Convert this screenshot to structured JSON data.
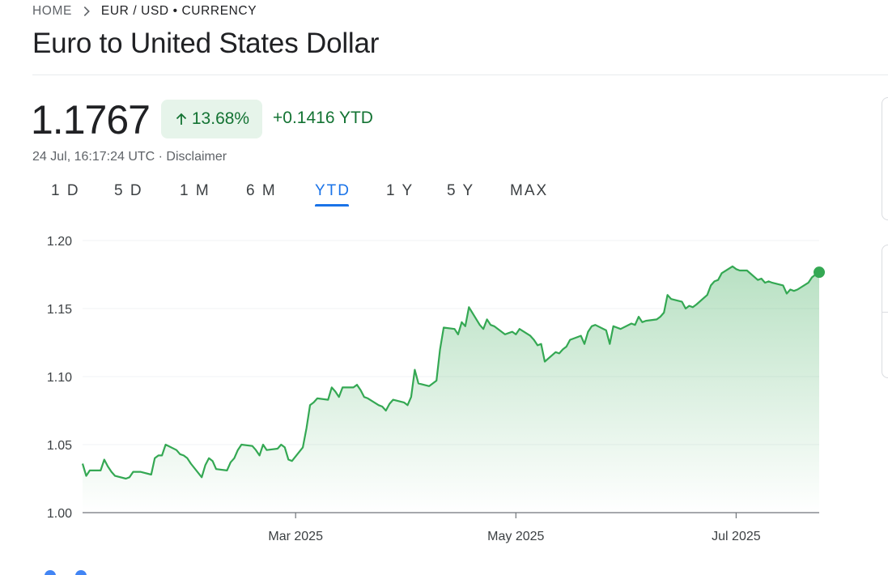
{
  "breadcrumb": {
    "home": "HOME",
    "current": "EUR / USD • CURRENCY"
  },
  "title": "Euro to United States Dollar",
  "quote": {
    "price": "1.1767",
    "change_percent": "13.68%",
    "change_abs": "+0.1416 YTD",
    "timestamp": "24 Jul, 16:17:24 UTC",
    "separator": " · ",
    "disclaimer": "Disclaimer"
  },
  "range_tabs": [
    {
      "label": "1 D",
      "active": false
    },
    {
      "label": "5 D",
      "active": false
    },
    {
      "label": "1 M",
      "active": false
    },
    {
      "label": "6 M",
      "active": false
    },
    {
      "label": "YTD",
      "active": true
    },
    {
      "label": "1 Y",
      "active": false
    },
    {
      "label": "5 Y",
      "active": false
    },
    {
      "label": "MAX",
      "active": false
    }
  ],
  "colors": {
    "line": "#34a853",
    "positive": "#137333",
    "positive_bg": "#e6f4ea",
    "active_tab": "#1a73e8",
    "grid": "#f1f3f4"
  },
  "icons": {
    "breadcrumb_separator": "chevron-right-icon",
    "change_direction": "arrow-up-icon"
  },
  "chart_data": {
    "type": "area",
    "title": "",
    "xlabel": "",
    "ylabel": "",
    "ylim": [
      1.0,
      1.2
    ],
    "yticks": [
      "1.20",
      "1.15",
      "1.10",
      "1.05",
      "1.00"
    ],
    "xticks": [
      {
        "label": "Mar 2025",
        "date": "2025-03-01"
      },
      {
        "label": "May 2025",
        "date": "2025-05-01"
      },
      {
        "label": "Jul 2025",
        "date": "2025-07-01"
      }
    ],
    "xlim": [
      "2025-01-01",
      "2025-07-24"
    ],
    "grid": true,
    "series": [
      {
        "points": [
          [
            "2025-01-01",
            1.036
          ],
          [
            "2025-01-02",
            1.027
          ],
          [
            "2025-01-03",
            1.031
          ],
          [
            "2025-01-06",
            1.031
          ],
          [
            "2025-01-07",
            1.039
          ],
          [
            "2025-01-08",
            1.034
          ],
          [
            "2025-01-09",
            1.03
          ],
          [
            "2025-01-10",
            1.027
          ],
          [
            "2025-01-13",
            1.025
          ],
          [
            "2025-01-14",
            1.026
          ],
          [
            "2025-01-15",
            1.03
          ],
          [
            "2025-01-16",
            1.03
          ],
          [
            "2025-01-17",
            1.03
          ],
          [
            "2025-01-20",
            1.028
          ],
          [
            "2025-01-21",
            1.04
          ],
          [
            "2025-01-22",
            1.042
          ],
          [
            "2025-01-23",
            1.042
          ],
          [
            "2025-01-24",
            1.05
          ],
          [
            "2025-01-27",
            1.046
          ],
          [
            "2025-01-28",
            1.043
          ],
          [
            "2025-01-29",
            1.042
          ],
          [
            "2025-01-30",
            1.04
          ],
          [
            "2025-01-31",
            1.036
          ],
          [
            "2025-02-03",
            1.026
          ],
          [
            "2025-02-04",
            1.035
          ],
          [
            "2025-02-05",
            1.04
          ],
          [
            "2025-02-06",
            1.038
          ],
          [
            "2025-02-07",
            1.032
          ],
          [
            "2025-02-10",
            1.031
          ],
          [
            "2025-02-11",
            1.037
          ],
          [
            "2025-02-12",
            1.04
          ],
          [
            "2025-02-13",
            1.046
          ],
          [
            "2025-02-14",
            1.05
          ],
          [
            "2025-02-17",
            1.049
          ],
          [
            "2025-02-18",
            1.046
          ],
          [
            "2025-02-19",
            1.042
          ],
          [
            "2025-02-20",
            1.05
          ],
          [
            "2025-02-21",
            1.046
          ],
          [
            "2025-02-24",
            1.047
          ],
          [
            "2025-02-25",
            1.05
          ],
          [
            "2025-02-26",
            1.048
          ],
          [
            "2025-02-27",
            1.039
          ],
          [
            "2025-02-28",
            1.038
          ],
          [
            "2025-03-03",
            1.048
          ],
          [
            "2025-03-04",
            1.062
          ],
          [
            "2025-03-05",
            1.079
          ],
          [
            "2025-03-06",
            1.081
          ],
          [
            "2025-03-07",
            1.084
          ],
          [
            "2025-03-10",
            1.083
          ],
          [
            "2025-03-11",
            1.092
          ],
          [
            "2025-03-12",
            1.089
          ],
          [
            "2025-03-13",
            1.085
          ],
          [
            "2025-03-14",
            1.092
          ],
          [
            "2025-03-17",
            1.092
          ],
          [
            "2025-03-18",
            1.094
          ],
          [
            "2025-03-19",
            1.09
          ],
          [
            "2025-03-20",
            1.085
          ],
          [
            "2025-03-21",
            1.084
          ],
          [
            "2025-03-24",
            1.079
          ],
          [
            "2025-03-25",
            1.078
          ],
          [
            "2025-03-26",
            1.075
          ],
          [
            "2025-03-27",
            1.08
          ],
          [
            "2025-03-28",
            1.083
          ],
          [
            "2025-03-31",
            1.081
          ],
          [
            "2025-04-01",
            1.079
          ],
          [
            "2025-04-02",
            1.085
          ],
          [
            "2025-04-03",
            1.105
          ],
          [
            "2025-04-04",
            1.095
          ],
          [
            "2025-04-07",
            1.093
          ],
          [
            "2025-04-08",
            1.095
          ],
          [
            "2025-04-09",
            1.097
          ],
          [
            "2025-04-10",
            1.12
          ],
          [
            "2025-04-11",
            1.136
          ],
          [
            "2025-04-14",
            1.135
          ],
          [
            "2025-04-15",
            1.131
          ],
          [
            "2025-04-16",
            1.14
          ],
          [
            "2025-04-17",
            1.137
          ],
          [
            "2025-04-18",
            1.151
          ],
          [
            "2025-04-21",
            1.138
          ],
          [
            "2025-04-22",
            1.135
          ],
          [
            "2025-04-23",
            1.142
          ],
          [
            "2025-04-24",
            1.138
          ],
          [
            "2025-04-25",
            1.137
          ],
          [
            "2025-04-28",
            1.131
          ],
          [
            "2025-04-29",
            1.132
          ],
          [
            "2025-04-30",
            1.133
          ],
          [
            "2025-05-01",
            1.131
          ],
          [
            "2025-05-02",
            1.135
          ],
          [
            "2025-05-05",
            1.13
          ],
          [
            "2025-05-06",
            1.127
          ],
          [
            "2025-05-07",
            1.123
          ],
          [
            "2025-05-08",
            1.124
          ],
          [
            "2025-05-09",
            1.111
          ],
          [
            "2025-05-12",
            1.118
          ],
          [
            "2025-05-13",
            1.117
          ],
          [
            "2025-05-14",
            1.12
          ],
          [
            "2025-05-15",
            1.122
          ],
          [
            "2025-05-16",
            1.127
          ],
          [
            "2025-05-19",
            1.13
          ],
          [
            "2025-05-20",
            1.124
          ],
          [
            "2025-05-21",
            1.133
          ],
          [
            "2025-05-22",
            1.137
          ],
          [
            "2025-05-23",
            1.138
          ],
          [
            "2025-05-26",
            1.134
          ],
          [
            "2025-05-27",
            1.124
          ],
          [
            "2025-05-28",
            1.137
          ],
          [
            "2025-05-29",
            1.136
          ],
          [
            "2025-05-30",
            1.135
          ],
          [
            "2025-06-02",
            1.139
          ],
          [
            "2025-06-03",
            1.138
          ],
          [
            "2025-06-04",
            1.144
          ],
          [
            "2025-06-05",
            1.14
          ],
          [
            "2025-06-06",
            1.141
          ],
          [
            "2025-06-09",
            1.142
          ],
          [
            "2025-06-10",
            1.144
          ],
          [
            "2025-06-11",
            1.147
          ],
          [
            "2025-06-12",
            1.16
          ],
          [
            "2025-06-13",
            1.157
          ],
          [
            "2025-06-16",
            1.155
          ],
          [
            "2025-06-17",
            1.15
          ],
          [
            "2025-06-18",
            1.152
          ],
          [
            "2025-06-19",
            1.151
          ],
          [
            "2025-06-20",
            1.153
          ],
          [
            "2025-06-23",
            1.16
          ],
          [
            "2025-06-24",
            1.167
          ],
          [
            "2025-06-25",
            1.17
          ],
          [
            "2025-06-26",
            1.171
          ],
          [
            "2025-06-27",
            1.176
          ],
          [
            "2025-06-30",
            1.181
          ],
          [
            "2025-07-01",
            1.179
          ],
          [
            "2025-07-02",
            1.178
          ],
          [
            "2025-07-03",
            1.178
          ],
          [
            "2025-07-04",
            1.178
          ],
          [
            "2025-07-07",
            1.171
          ],
          [
            "2025-07-08",
            1.172
          ],
          [
            "2025-07-09",
            1.169
          ],
          [
            "2025-07-10",
            1.17
          ],
          [
            "2025-07-11",
            1.169
          ],
          [
            "2025-07-14",
            1.167
          ],
          [
            "2025-07-15",
            1.161
          ],
          [
            "2025-07-16",
            1.164
          ],
          [
            "2025-07-17",
            1.163
          ],
          [
            "2025-07-18",
            1.164
          ],
          [
            "2025-07-21",
            1.169
          ],
          [
            "2025-07-22",
            1.173
          ],
          [
            "2025-07-23",
            1.175
          ],
          [
            "2025-07-24",
            1.1767
          ]
        ]
      }
    ]
  }
}
